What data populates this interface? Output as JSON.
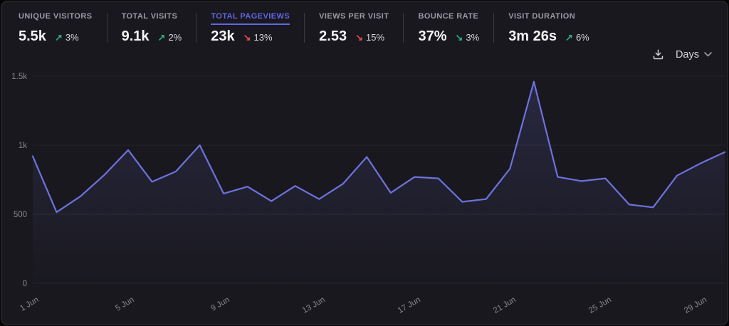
{
  "colors": {
    "accent": "#6165e6",
    "green": "#2fae7e",
    "red": "#e0504f",
    "line": "#6e72dd",
    "grid": "#26252c",
    "axis_text": "#88878e"
  },
  "metrics": [
    {
      "label": "UNIQUE VISITORS",
      "value": "5.5k",
      "arrow": "↗",
      "change": "3%",
      "arrow_color": "green",
      "selected": false
    },
    {
      "label": "TOTAL VISITS",
      "value": "9.1k",
      "arrow": "↗",
      "change": "2%",
      "arrow_color": "green",
      "selected": false
    },
    {
      "label": "TOTAL PAGEVIEWS",
      "value": "23k",
      "arrow": "↘",
      "change": "13%",
      "arrow_color": "red",
      "selected": true
    },
    {
      "label": "VIEWS PER VISIT",
      "value": "2.53",
      "arrow": "↘",
      "change": "15%",
      "arrow_color": "red",
      "selected": false
    },
    {
      "label": "BOUNCE RATE",
      "value": "37%",
      "arrow": "↘",
      "change": "3%",
      "arrow_color": "green",
      "selected": false
    },
    {
      "label": "VISIT DURATION",
      "value": "3m 26s",
      "arrow": "↗",
      "change": "6%",
      "arrow_color": "green",
      "selected": false
    }
  ],
  "toolbar": {
    "download_icon": "download-icon",
    "interval_label": "Days"
  },
  "chart_data": {
    "type": "area",
    "title": "Total pageviews by day",
    "x_days": [
      1,
      2,
      3,
      4,
      5,
      6,
      7,
      8,
      9,
      10,
      11,
      12,
      13,
      14,
      15,
      16,
      17,
      18,
      19,
      20,
      21,
      22,
      23,
      24,
      25,
      26,
      27,
      28,
      29,
      30
    ],
    "values": [
      920,
      515,
      630,
      785,
      965,
      735,
      810,
      1000,
      650,
      700,
      595,
      705,
      610,
      720,
      915,
      655,
      770,
      760,
      590,
      610,
      830,
      1460,
      770,
      740,
      760,
      570,
      550,
      780,
      870,
      950
    ],
    "x_tick_indices": [
      0,
      4,
      8,
      12,
      16,
      20,
      24,
      28
    ],
    "x_tick_labels": [
      "1 Jun",
      "5 Jun",
      "9 Jun",
      "13 Jun",
      "17 Jun",
      "21 Jun",
      "25 Jun",
      "29 Jun"
    ],
    "y_ticks": [
      {
        "value": 0,
        "label": "0"
      },
      {
        "value": 500,
        "label": "500"
      },
      {
        "value": 1000,
        "label": "1k"
      },
      {
        "value": 1500,
        "label": "1.5k"
      }
    ],
    "ylim": [
      0,
      1500
    ],
    "grid": true,
    "legend": false,
    "line_color": "#6e72dd",
    "area_fade": [
      0.18,
      0.01
    ]
  }
}
